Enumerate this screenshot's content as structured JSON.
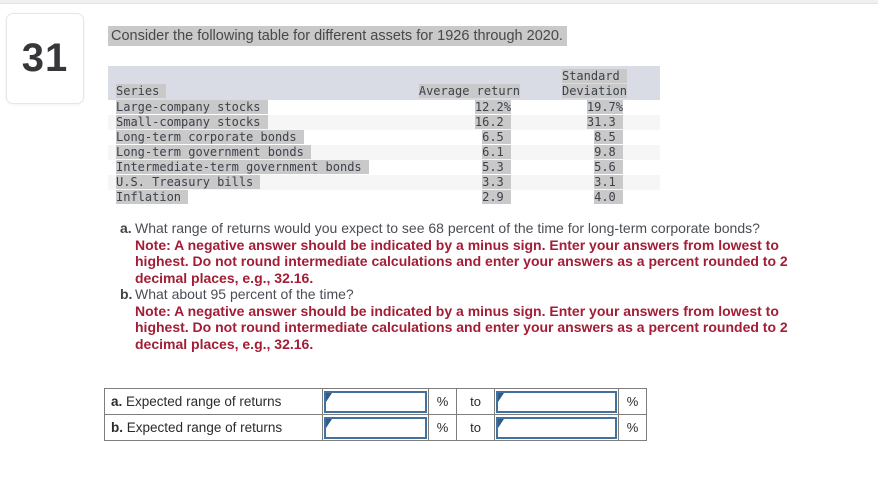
{
  "question_number": "31",
  "prompt": "Consider the following table for different assets for 1926 through 2020.",
  "asset_table": {
    "header": {
      "col1": "Series",
      "col2": "Average return",
      "col3_line1": "Standard ",
      "col3_line2": "Deviation"
    },
    "rows": [
      {
        "series": "Large-company stocks",
        "avg": "12.2%",
        "sd": "19.7%"
      },
      {
        "series": "Small-company stocks",
        "avg": "16.2 ",
        "sd": "31.3 "
      },
      {
        "series": "Long-term corporate bonds",
        "avg": "6.5 ",
        "sd": "8.5 "
      },
      {
        "series": "Long-term government bonds",
        "avg": "6.1 ",
        "sd": "9.8 "
      },
      {
        "series": "Intermediate-term government bonds",
        "avg": "5.3 ",
        "sd": "5.6 "
      },
      {
        "series": "U.S. Treasury bills",
        "avg": "3.3 ",
        "sd": "3.1 "
      },
      {
        "series": "Inflation",
        "avg": "2.9 ",
        "sd": "4.0 "
      }
    ]
  },
  "questions": [
    {
      "label": "a.",
      "text": "What range of returns would you expect to see 68 percent of the time for long-term corporate bonds?",
      "note": "Note: A negative answer should be indicated by a minus sign. Enter your answers from lowest to highest. Do not round intermediate calculations and enter your answers as a percent rounded to 2 decimal places, e.g., 32.16."
    },
    {
      "label": "b.",
      "text": "What about 95 percent of the time?",
      "note": "Note: A negative answer should be indicated by a minus sign. Enter your answers from lowest to highest. Do not round intermediate calculations and enter your answers as a percent rounded to 2 decimal places, e.g., 32.16."
    }
  ],
  "answer_table": {
    "rows": [
      {
        "prefix": "a.",
        "label": "Expected range of returns",
        "low_value": "",
        "low_unit": "%",
        "connector": "to",
        "high_value": "",
        "high_unit": "%"
      },
      {
        "prefix": "b.",
        "label": "Expected range of returns",
        "low_value": "",
        "low_unit": "%",
        "connector": "to",
        "high_value": "",
        "high_unit": "%"
      }
    ]
  },
  "colors": {
    "input_border_blue": "#41719C",
    "flag_blue": "#2E5D8C",
    "note_red": "#A21D35",
    "selection_highlight_gray": "#C9C9C9",
    "table_header_band": "#D9DCE5",
    "stripe_gray": "#F6F6F7"
  }
}
